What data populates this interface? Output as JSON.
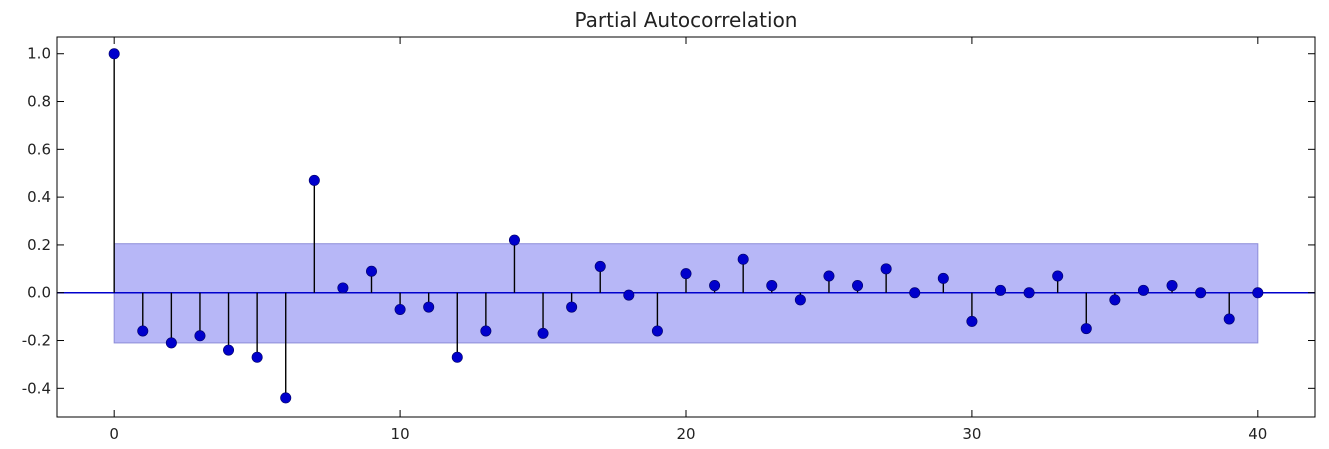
{
  "chart_data": {
    "type": "stem",
    "title": "Partial Autocorrelation",
    "xlabel": "",
    "ylabel": "",
    "xlim": [
      -2,
      42
    ],
    "ylim": [
      -0.52,
      1.07
    ],
    "xticks": [
      0,
      10,
      20,
      30,
      40
    ],
    "xtick_labels": [
      "0",
      "10",
      "20",
      "30",
      "40"
    ],
    "yticks": [
      -0.4,
      -0.2,
      0.0,
      0.2,
      0.4,
      0.6,
      0.8,
      1.0
    ],
    "ytick_labels": [
      "-0.4",
      "-0.2",
      "0.0",
      "0.2",
      "0.4",
      "0.6",
      "0.8",
      "1.0"
    ],
    "grid": false,
    "confidence_band": {
      "lower": -0.21,
      "upper": 0.205,
      "x_from": 0,
      "x_to": 40
    },
    "x": [
      0,
      1,
      2,
      3,
      4,
      5,
      6,
      7,
      8,
      9,
      10,
      11,
      12,
      13,
      14,
      15,
      16,
      17,
      18,
      19,
      20,
      21,
      22,
      23,
      24,
      25,
      26,
      27,
      28,
      29,
      30,
      31,
      32,
      33,
      34,
      35,
      36,
      37,
      38,
      39,
      40
    ],
    "values": [
      1.0,
      -0.16,
      -0.21,
      -0.18,
      -0.24,
      -0.27,
      -0.44,
      0.47,
      0.02,
      0.09,
      -0.07,
      -0.06,
      -0.27,
      -0.16,
      0.22,
      -0.17,
      -0.06,
      0.11,
      -0.01,
      -0.16,
      0.08,
      0.03,
      0.14,
      0.03,
      -0.03,
      0.07,
      0.03,
      0.1,
      0.0,
      0.06,
      -0.12,
      0.01,
      0.0,
      0.07,
      -0.15,
      -0.03,
      0.01,
      0.03,
      0.0,
      -0.11,
      0.0
    ],
    "colors": {
      "marker": "#0000cc",
      "stem": "#000000",
      "zero_line": "#0000cc",
      "band_fill": "#b7b7f7",
      "band_edge": "#8c8cd8"
    }
  }
}
